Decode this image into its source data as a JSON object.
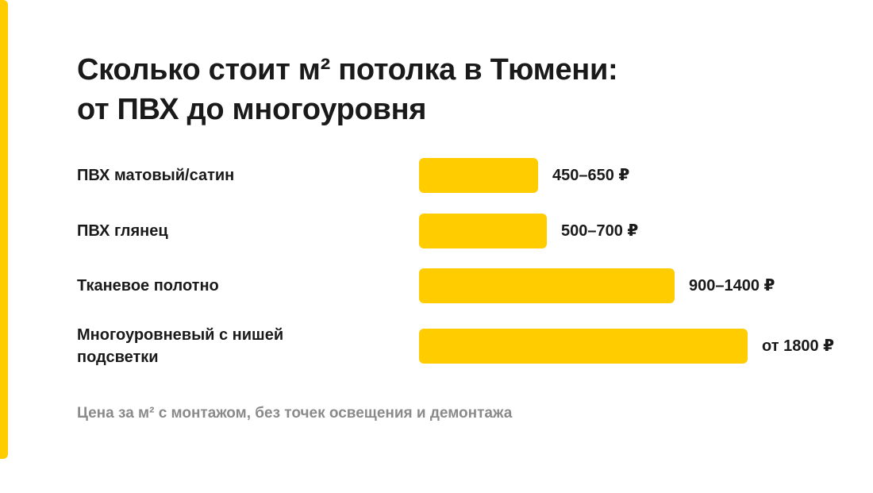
{
  "colors": {
    "accent": "#FFCC00",
    "text": "#1a1a1a",
    "muted": "#8a8a8a"
  },
  "title": "Сколько стоит м² потолка в Тюмени: от ПВХ до многоуровня",
  "footnote": "Цена за м² с монтажом, без точек освещения и демонтажа",
  "chart_data": {
    "type": "bar",
    "orientation": "horizontal",
    "title": "Сколько стоит м² потолка в Тюмени: от ПВХ до многоуровня",
    "xlabel": "",
    "ylabel": "",
    "categories": [
      "ПВХ матовый/сатин",
      "ПВХ глянец",
      "Тканевое полотно",
      "Многоуровневый с нишей подсветки"
    ],
    "values": [
      650,
      700,
      1400,
      1800
    ],
    "value_labels": [
      "450–650 ₽",
      "500–700 ₽",
      "900–1400 ₽",
      "от 1800 ₽"
    ],
    "xlim": [
      0,
      1800
    ],
    "grid": false,
    "legend": "none"
  }
}
